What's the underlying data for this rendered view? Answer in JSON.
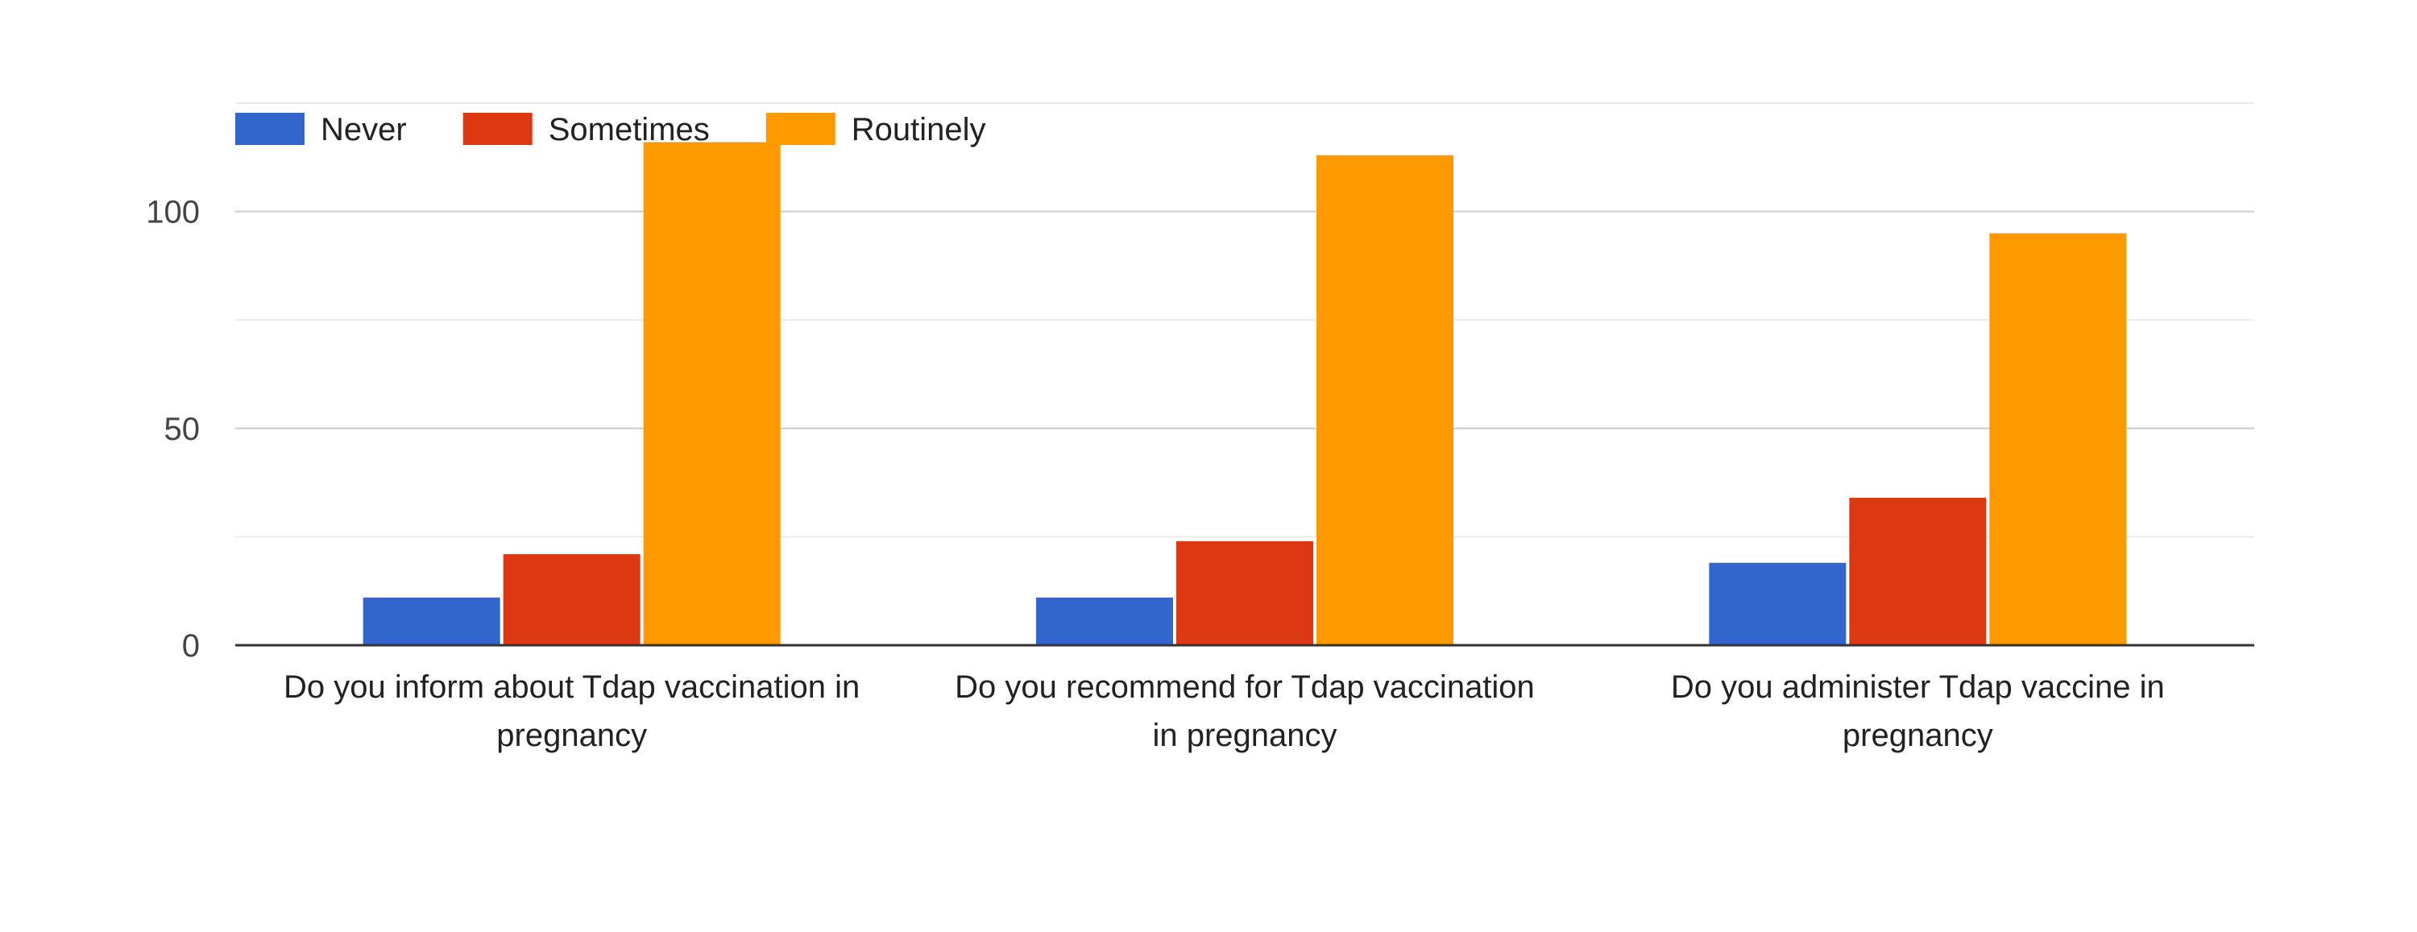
{
  "chart_data": {
    "type": "bar",
    "title": "",
    "xlabel": "",
    "ylabel": "",
    "ylim": [
      0,
      125
    ],
    "yticks": [
      0,
      50,
      100
    ],
    "grid": true,
    "legend_position": "top-left",
    "categories": [
      [
        "Do you inform about Tdap vaccination in",
        "pregnancy"
      ],
      [
        "Do you recommend for Tdap vaccination",
        "in pregnancy"
      ],
      [
        "Do you administer Tdap vaccine in",
        "pregnancy"
      ]
    ],
    "series": [
      {
        "name": "Never",
        "color": "#3366cc",
        "values": [
          11,
          11,
          19
        ]
      },
      {
        "name": "Sometimes",
        "color": "#dc3912",
        "values": [
          21,
          24,
          34
        ]
      },
      {
        "name": "Routinely",
        "color": "#ff9900",
        "values": [
          116,
          113,
          95
        ]
      }
    ]
  }
}
